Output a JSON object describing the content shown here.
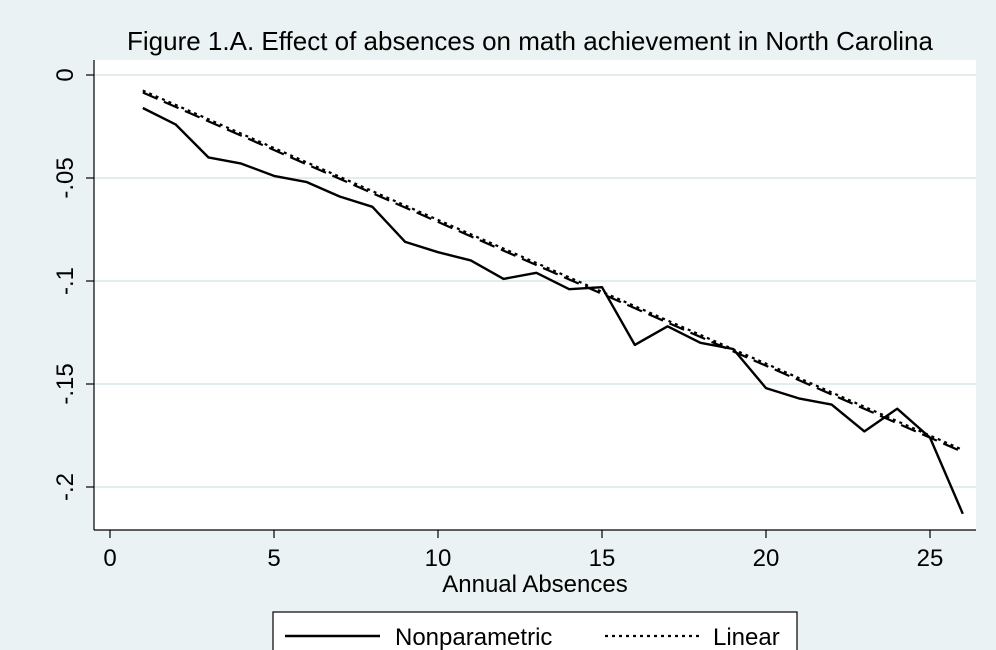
{
  "chart_data": {
    "type": "line",
    "title": "Figure 1.A. Effect of absences on math achievement in North Carolina",
    "xlabel": "Annual Absences",
    "ylabel": "",
    "xlim": [
      0,
      26
    ],
    "ylim": [
      -0.21,
      0
    ],
    "x_ticks": [
      0,
      5,
      10,
      15,
      20,
      25
    ],
    "x_tick_labels": [
      "0",
      "5",
      "10",
      "15",
      "20",
      "25"
    ],
    "y_ticks": [
      0,
      -0.05,
      -0.1,
      -0.15,
      -0.2
    ],
    "y_tick_labels": [
      "0",
      "-.05",
      "-.1",
      "-.15",
      "-.2"
    ],
    "grid": true,
    "legend_position": "bottom",
    "colors": {
      "background": "#eaf2f3",
      "plot_area": "#ffffff",
      "gridline": "#e3ecee",
      "line": "#000000"
    },
    "series": [
      {
        "name": "Nonparametric",
        "style": "solid",
        "x": [
          1,
          2,
          3,
          4,
          5,
          6,
          7,
          8,
          9,
          10,
          11,
          12,
          13,
          14,
          15,
          16,
          17,
          18,
          19,
          20,
          21,
          22,
          23,
          24,
          25,
          26
        ],
        "y": [
          -0.016,
          -0.024,
          -0.04,
          -0.043,
          -0.049,
          -0.052,
          -0.059,
          -0.064,
          -0.081,
          -0.086,
          -0.09,
          -0.099,
          -0.096,
          -0.104,
          -0.103,
          -0.131,
          -0.122,
          -0.13,
          -0.133,
          -0.152,
          -0.157,
          -0.16,
          -0.173,
          -0.162,
          -0.176,
          -0.213
        ]
      },
      {
        "name": "Linear",
        "style": "dotted",
        "x": [
          1,
          26
        ],
        "y": [
          -0.0075,
          -0.182
        ]
      },
      {
        "name": "",
        "style": "dashed",
        "x": [
          1,
          26
        ],
        "y": [
          -0.0085,
          -0.183
        ]
      }
    ]
  }
}
